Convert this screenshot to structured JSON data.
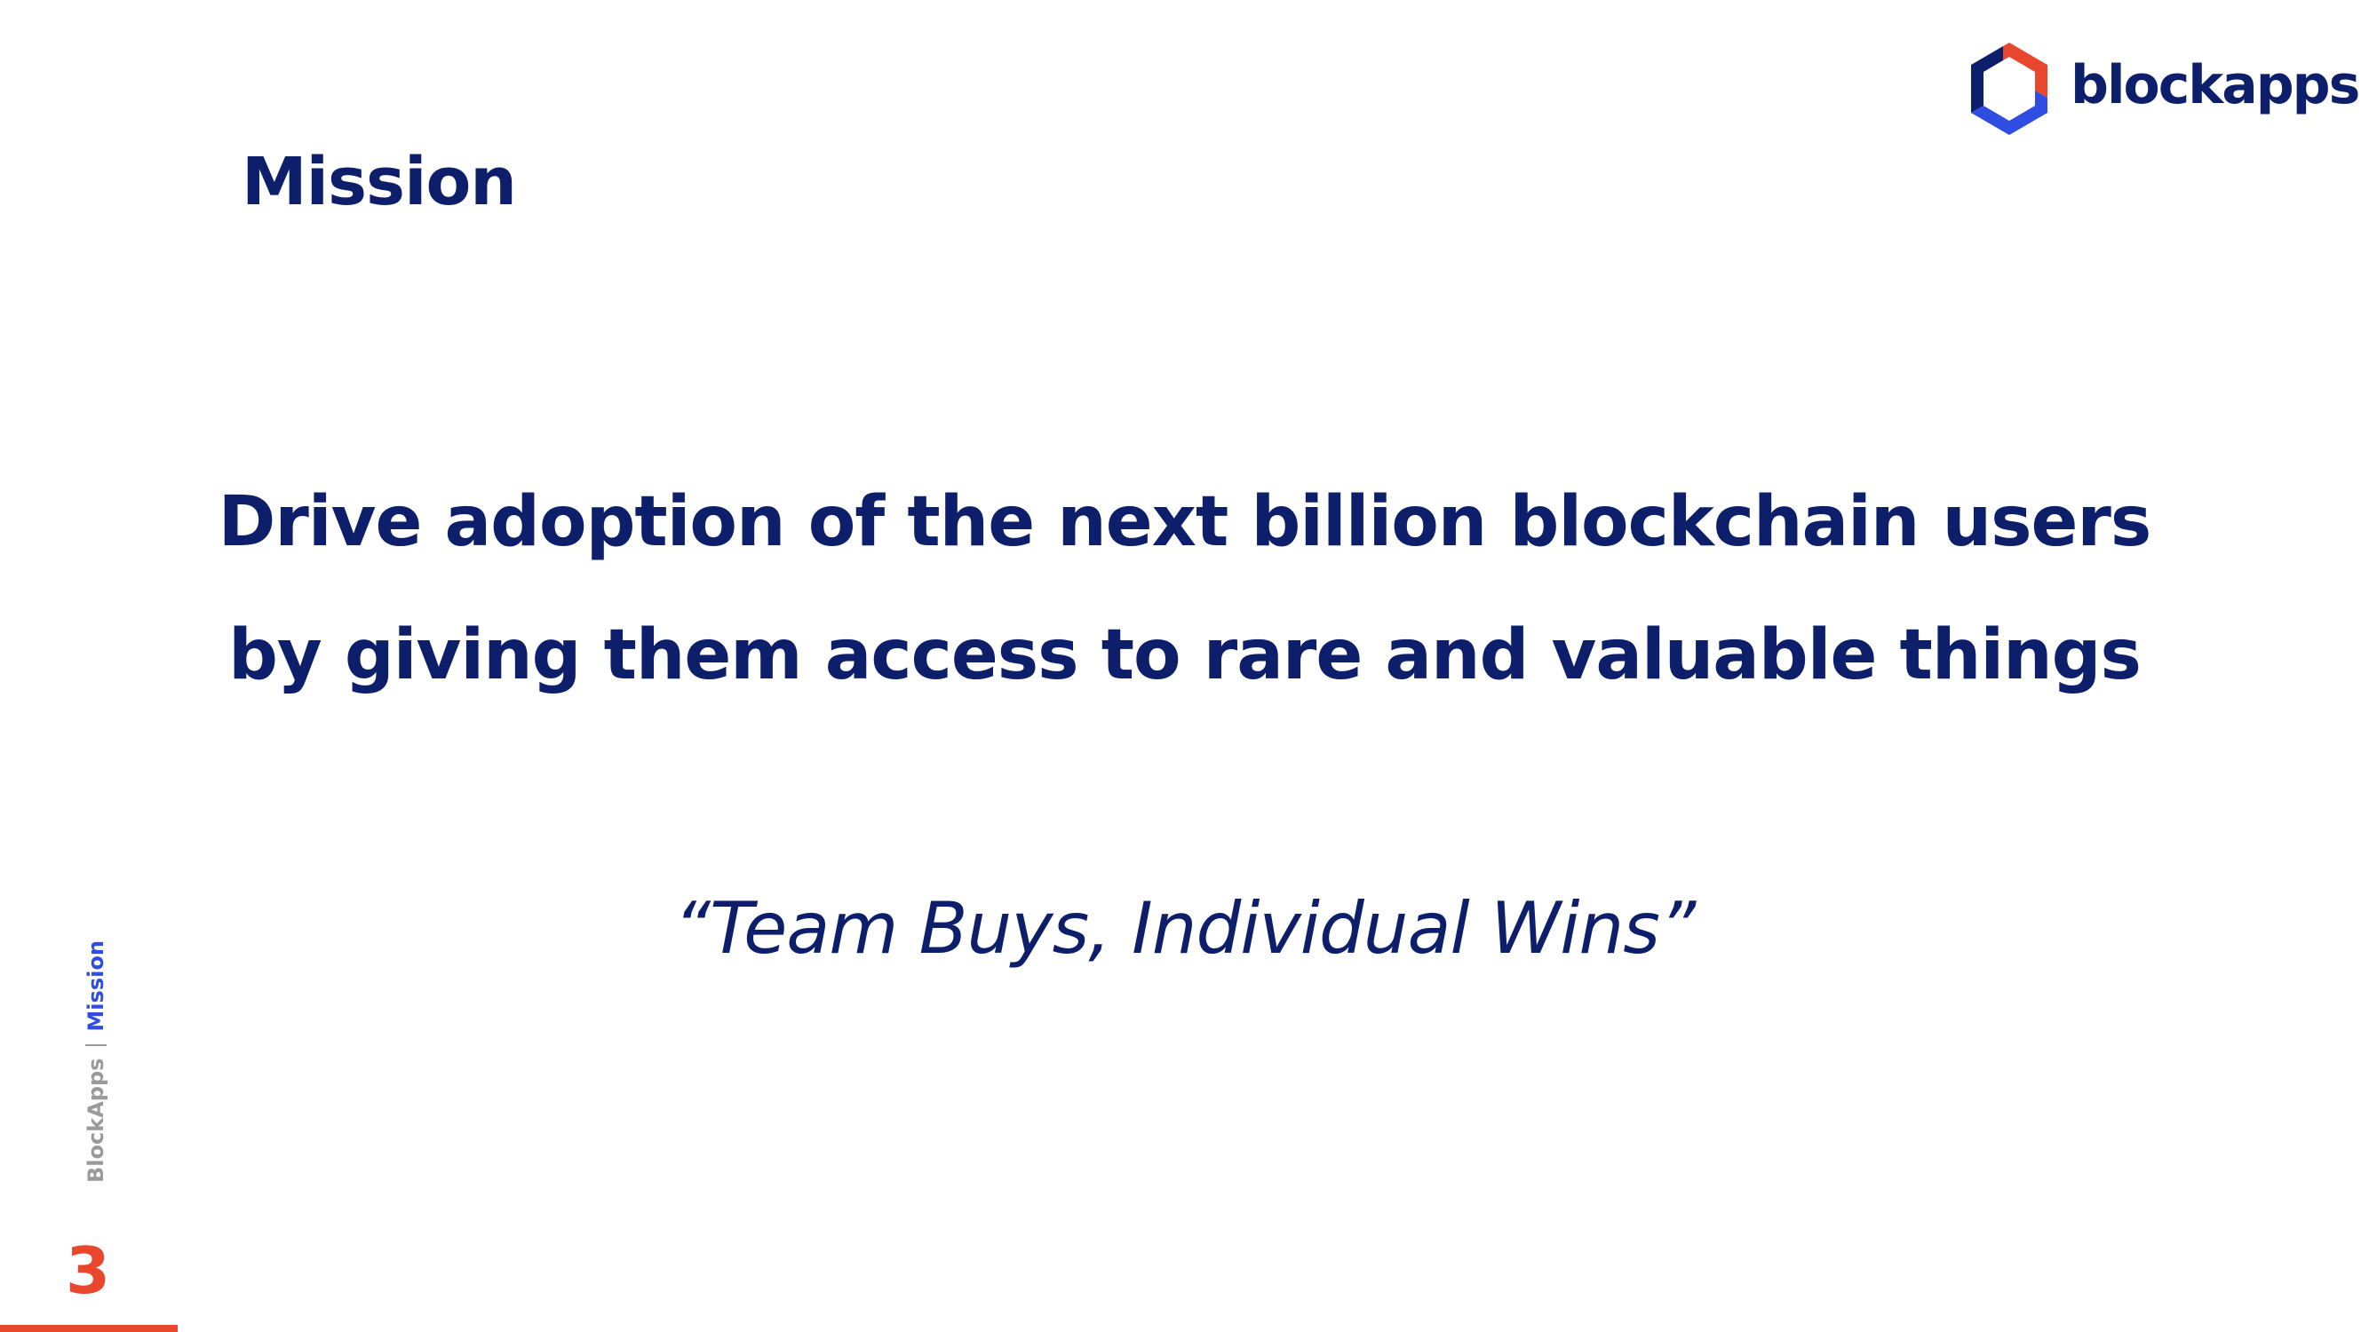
{
  "header": {
    "title": "Mission"
  },
  "logo": {
    "wordmark": "blockapps",
    "icon": "blockapps-hexagon-logo-icon"
  },
  "mission": {
    "lines": [
      "Drive adoption of the next billion blockchain users",
      "by giving them access to rare and valuable things"
    ]
  },
  "quote": "“Team Buys, Individual Wins”",
  "footer": {
    "company": "BlockApps",
    "section": "Mission",
    "page_number": "3"
  },
  "colors": {
    "navy": "#0d1f6b",
    "accent_red": "#e8472e",
    "accent_blue": "#2f4de0",
    "gray": "#9a9a9a"
  }
}
